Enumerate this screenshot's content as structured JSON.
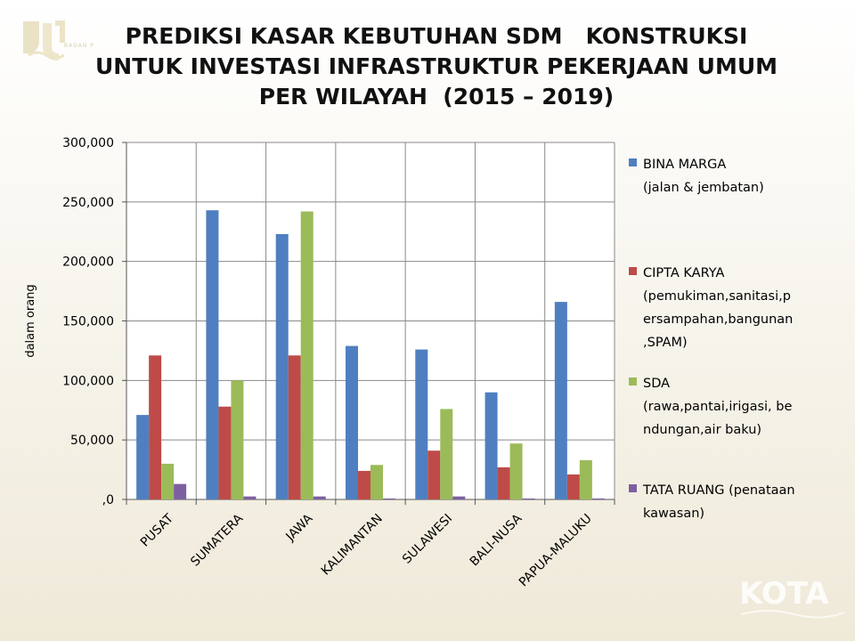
{
  "header": {
    "title_lines": [
      "PREDIKSI KASAR KEBUTUHAN SDM   KONSTRUKSI",
      "UNTUK INVESTASI INFRASTRUKTUR PEKERJAAN UMUM",
      "PER WILAYAH  (2015 – 2019)"
    ],
    "logo_text": "BADAN P"
  },
  "watermark": {
    "text": "KOTA"
  },
  "chart_data": {
    "type": "bar",
    "title": "PREDIKSI KASAR KEBUTUHAN SDM   KONSTRUKSI UNTUK INVESTASI INFRASTRUKTUR PEKERJAAN UMUM PER WILAYAH  (2015 – 2019)",
    "ylabel": "dalam orang",
    "xlabel": "",
    "ylim": [
      0,
      300000
    ],
    "yticks": [
      0,
      50000,
      100000,
      150000,
      200000,
      250000,
      300000
    ],
    "ytick_labels": [
      ",0",
      "50,000",
      "100,000",
      "150,000",
      "200,000",
      "250,000",
      "300,000"
    ],
    "grid": true,
    "legend_position": "right",
    "categories": [
      "PUSAT",
      "SUMATERA",
      "JAWA",
      "KALIMANTAN",
      "SULAWESI",
      "BALI-NUSA",
      "PAPUA-MALUKU"
    ],
    "series": [
      {
        "name": "BINA MARGA (jalan & jembatan)",
        "legend_lines": [
          "BINA MARGA",
          "(jalan & jembatan)"
        ],
        "color": "#4f7fc0",
        "values": [
          71000,
          243000,
          223000,
          129000,
          126000,
          90000,
          166000
        ]
      },
      {
        "name": "CIPTA KARYA (pemukiman,sanitasi,persampahan,bangunan,SPAM)",
        "legend_lines": [
          "CIPTA KARYA",
          "(pemukiman,sanitasi,p",
          "ersampahan,bangunan",
          ",SPAM)"
        ],
        "color": "#be4b48",
        "values": [
          121000,
          78000,
          121000,
          24000,
          41000,
          27000,
          21000
        ]
      },
      {
        "name": "SDA (rawa,pantai,irigasi, bendungan,air baku)",
        "legend_lines": [
          "SDA",
          "(rawa,pantai,irigasi, be",
          "ndungan,air baku)"
        ],
        "color": "#9bbb59",
        "values": [
          30000,
          100000,
          242000,
          29000,
          76000,
          47000,
          33000
        ]
      },
      {
        "name": "TATA RUANG (penataan kawasan)",
        "legend_lines": [
          "TATA RUANG (penataan",
          "kawasan)"
        ],
        "color": "#7d5fa0",
        "values": [
          13000,
          2500,
          2500,
          800,
          2500,
          800,
          800
        ]
      }
    ]
  }
}
